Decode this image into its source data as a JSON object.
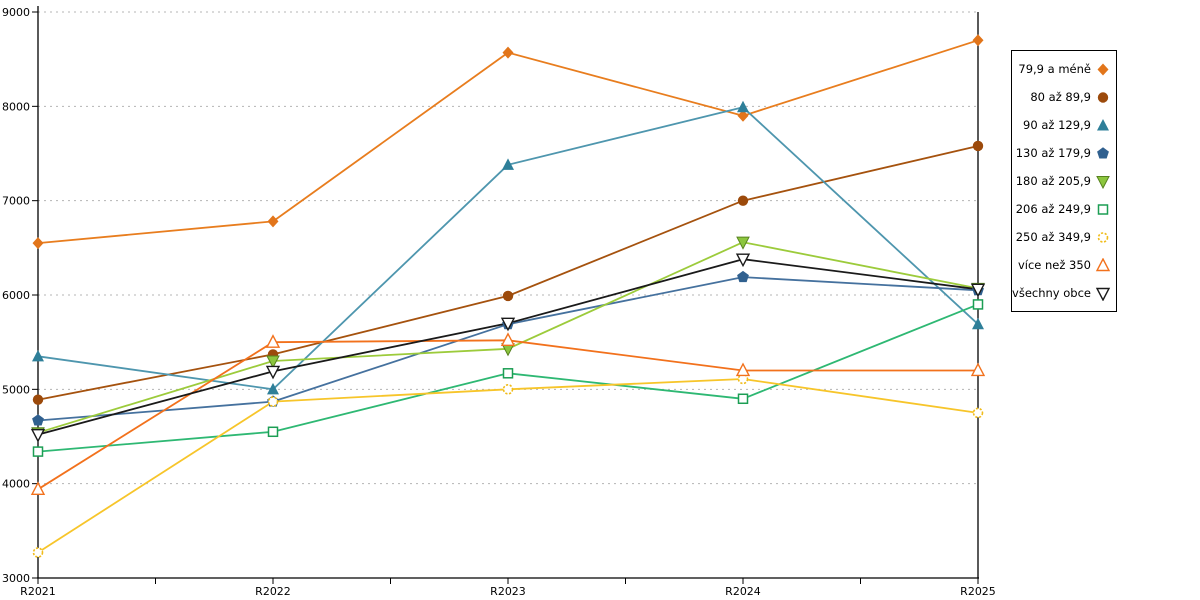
{
  "chart_data": {
    "type": "line",
    "title": "",
    "xlabel": "",
    "ylabel": "",
    "categories": [
      "R2021",
      "R2022",
      "R2023",
      "R2024",
      "R2025"
    ],
    "ylim": [
      3000,
      9000
    ],
    "yticks": [
      3000,
      4000,
      5000,
      6000,
      7000,
      8000,
      9000
    ],
    "grid": "horizontal dotted",
    "legend_position": "right",
    "minor_x_ticks_at_midpoints": true,
    "series": [
      {
        "name": "79,9 a méně",
        "marker": "diamond-filled",
        "color": "#E87D1E",
        "marker_color": "#E2751A",
        "values": [
          6550,
          6780,
          8570,
          7900,
          8700
        ]
      },
      {
        "name": "80 až 89,9",
        "marker": "circle-filled",
        "color": "#A5520E",
        "marker_color": "#9C4A0B",
        "values": [
          4890,
          5370,
          5990,
          7000,
          7580
        ]
      },
      {
        "name": "90 až 129,9",
        "marker": "triangle-up-filled",
        "color": "#4E96AE",
        "marker_color": "#2E7F99",
        "values": [
          5350,
          5000,
          7380,
          7990,
          5690
        ]
      },
      {
        "name": "130 až 179,9",
        "marker": "pentagon-filled",
        "color": "#45719E",
        "marker_color": "#30608F",
        "values": [
          4670,
          4870,
          5690,
          6190,
          6050
        ]
      },
      {
        "name": "180 až 205,9",
        "marker": "triangle-down-filled",
        "color": "#9CCB3B",
        "marker_color": "#8CC63E",
        "values": [
          4540,
          5300,
          5430,
          6560,
          6070
        ]
      },
      {
        "name": "206 až 249,9",
        "marker": "square-open",
        "color": "#2EB873",
        "marker_color": "#1C9E54",
        "values": [
          4340,
          4550,
          5170,
          4900,
          5900
        ]
      },
      {
        "name": "250 až 349,9",
        "marker": "circle-open-dashed",
        "color": "#F7C52A",
        "marker_color": "#F0BC1B",
        "values": [
          3270,
          4870,
          5000,
          5110,
          4750
        ]
      },
      {
        "name": "více než 350",
        "marker": "triangle-up-open",
        "color": "#F2711C",
        "marker_color": "#F2711C",
        "values": [
          3940,
          5500,
          5520,
          5200,
          5200
        ]
      },
      {
        "name": "všechny obce",
        "marker": "triangle-down-open",
        "color": "#1A1A1A",
        "marker_color": "#1A1A1A",
        "values": [
          4520,
          5190,
          5700,
          6380,
          6060
        ]
      }
    ],
    "axis_color": "#000000",
    "grid_color": "#B4B4B4",
    "background_color": "#FFFFFF"
  }
}
